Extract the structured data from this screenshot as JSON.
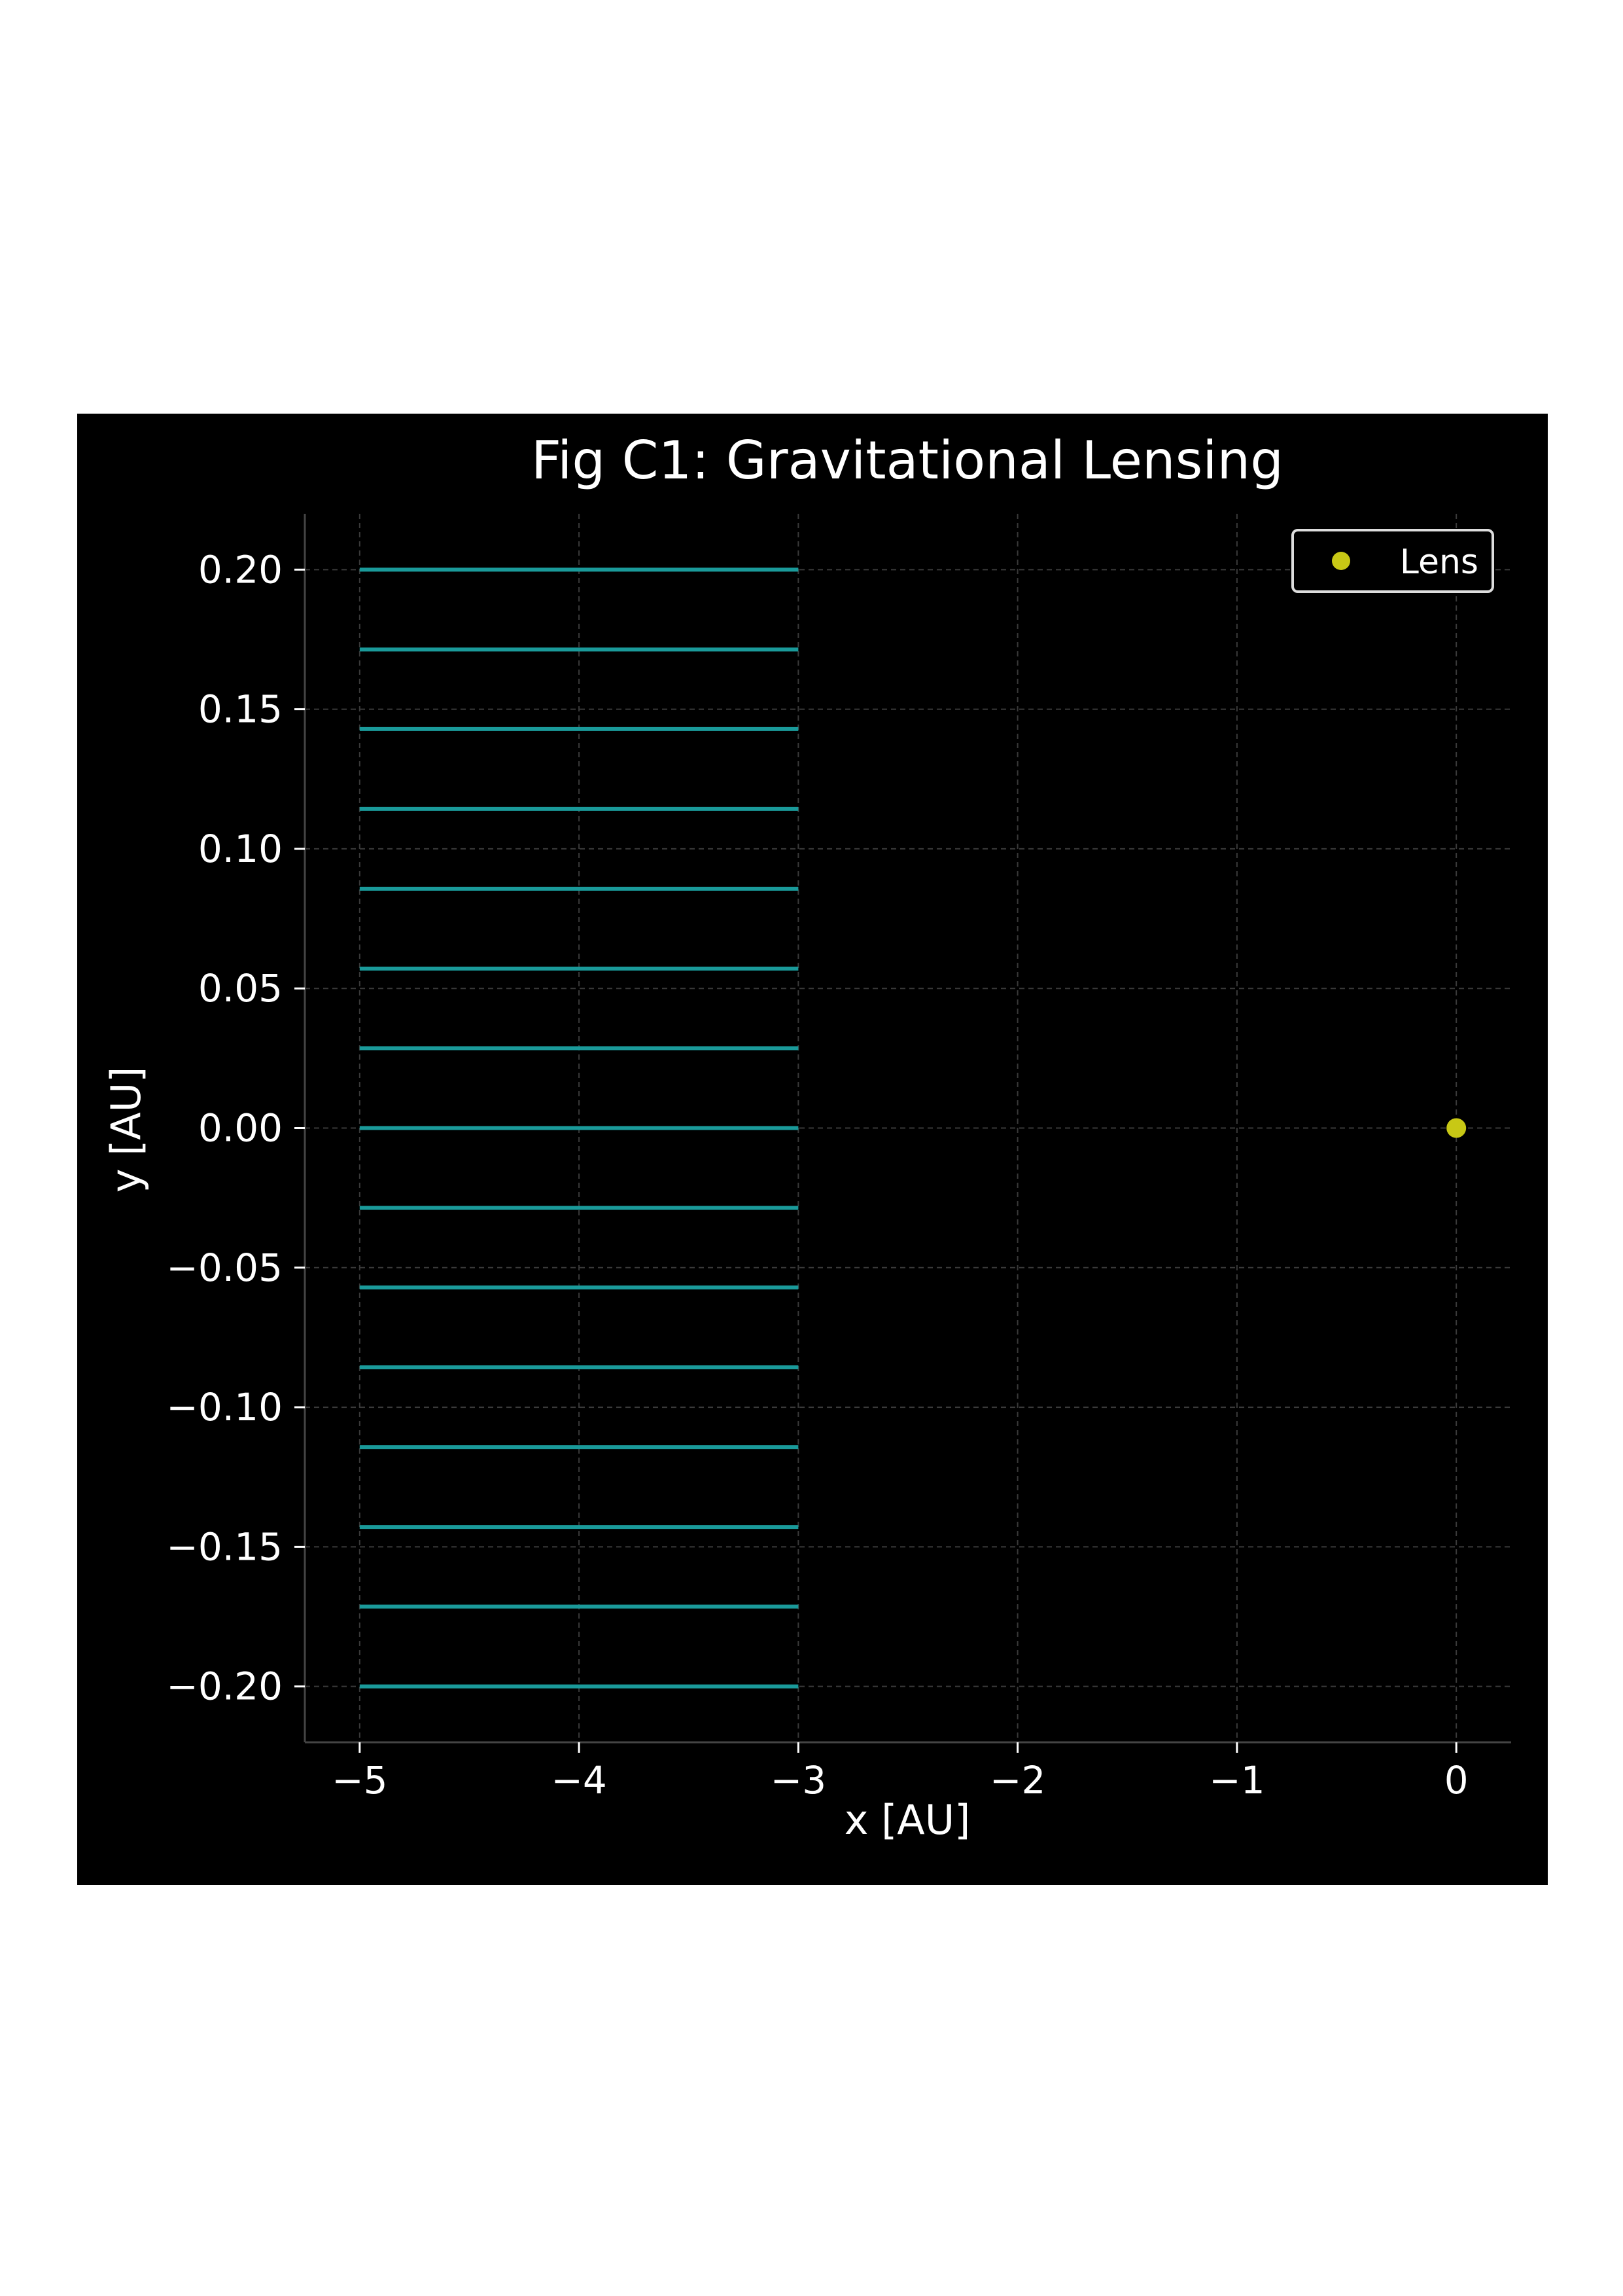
{
  "chart_data": {
    "type": "line",
    "title": "Fig C1: Gravitational Lensing",
    "xlabel": "x [AU]",
    "ylabel": "y [AU]",
    "xlim": [
      -5.25,
      0.25
    ],
    "ylim": [
      -0.22,
      0.22
    ],
    "x_ticks": [
      -5,
      -4,
      -3,
      -2,
      -1,
      0
    ],
    "x_tick_labels": [
      "−5",
      "−4",
      "−3",
      "−2",
      "−1",
      "0"
    ],
    "y_ticks": [
      0.2,
      0.15,
      0.1,
      0.05,
      0.0,
      -0.05,
      -0.1,
      -0.15,
      -0.2
    ],
    "y_tick_labels": [
      "0.20",
      "0.15",
      "0.10",
      "0.05",
      "0.00",
      "−0.05",
      "−0.10",
      "−0.15",
      "−0.20"
    ],
    "grid": true,
    "background": "#000000",
    "rays": {
      "color": "#1a9a9a",
      "x_start": -5,
      "x_end": -3,
      "y_values": [
        0.2,
        0.1714,
        0.1429,
        0.1143,
        0.0857,
        0.0571,
        0.0286,
        0.0,
        -0.0286,
        -0.0571,
        -0.0857,
        -0.1143,
        -0.1429,
        -0.1714,
        -0.2
      ]
    },
    "series": [
      {
        "name": "Lens",
        "type": "scatter",
        "color": "#c8c815",
        "points": [
          [
            0,
            0
          ]
        ]
      }
    ],
    "legend": {
      "position": "top-right",
      "entries": [
        "Lens"
      ]
    }
  }
}
